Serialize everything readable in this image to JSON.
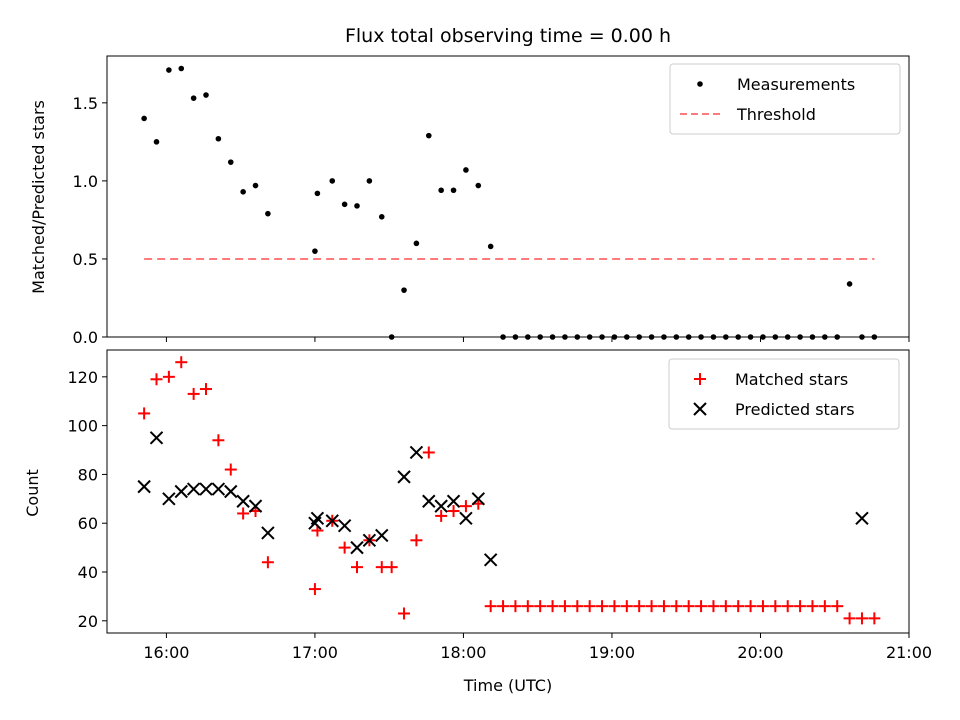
{
  "chart_data": [
    {
      "type": "scatter",
      "title": "Flux total observing time = 0.00 h",
      "xlabel": "",
      "ylabel": "Matched/Predicted stars",
      "ylim": [
        0,
        1.8
      ],
      "xlim": [
        "15:36",
        "21:00"
      ],
      "yticks": [
        "0.0",
        "0.5",
        "1.0",
        "1.5"
      ],
      "grid": false,
      "legend_position": "top-right",
      "colors": {
        "measurements": "#000000",
        "threshold": "#ff7b7b"
      },
      "series": [
        {
          "name": "Measurements",
          "x": [
            "15:51",
            "15:56",
            "16:01",
            "16:06",
            "16:11",
            "16:16",
            "16:21",
            "16:26",
            "16:31",
            "16:36",
            "16:41",
            "17:00",
            "17:01",
            "17:07",
            "17:12",
            "17:17",
            "17:22",
            "17:27",
            "17:31",
            "17:36",
            "17:41",
            "17:46",
            "17:51",
            "17:56",
            "18:01",
            "18:06",
            "18:11",
            "18:16",
            "18:21",
            "18:26",
            "18:31",
            "18:36",
            "18:41",
            "18:46",
            "18:51",
            "18:56",
            "19:01",
            "19:06",
            "19:11",
            "19:16",
            "19:21",
            "19:26",
            "19:31",
            "19:36",
            "19:41",
            "19:46",
            "19:51",
            "19:56",
            "20:01",
            "20:06",
            "20:11",
            "20:16",
            "20:21",
            "20:26",
            "20:31",
            "20:36",
            "20:41",
            "20:46"
          ],
          "y": [
            1.4,
            1.25,
            1.71,
            1.72,
            1.53,
            1.55,
            1.27,
            1.12,
            0.93,
            0.97,
            0.79,
            0.55,
            0.92,
            1.0,
            0.85,
            0.84,
            1.0,
            0.77,
            0.0,
            0.3,
            0.6,
            1.29,
            0.94,
            0.94,
            1.07,
            0.97,
            0.58,
            0.0,
            0.0,
            0.0,
            0.0,
            0.0,
            0.0,
            0.0,
            0.0,
            0.0,
            0.0,
            0.0,
            0.0,
            0.0,
            0.0,
            0.0,
            0.0,
            0.0,
            0.0,
            0.0,
            0.0,
            0.0,
            0.0,
            0.0,
            0.0,
            0.0,
            0.0,
            0.0,
            0.0,
            0.34,
            0.0,
            0.0
          ]
        },
        {
          "name": "Threshold",
          "x": [
            "15:51",
            "20:46"
          ],
          "y": [
            0.5,
            0.5
          ]
        }
      ]
    },
    {
      "type": "scatter",
      "title": "",
      "xlabel": "Time (UTC)",
      "ylabel": "Count",
      "ylim": [
        15,
        131
      ],
      "xlim": [
        "15:36",
        "21:00"
      ],
      "xticks": [
        "16:00",
        "17:00",
        "18:00",
        "19:00",
        "20:00",
        "21:00"
      ],
      "yticks": [
        "20",
        "40",
        "60",
        "80",
        "100",
        "120"
      ],
      "grid": false,
      "legend_position": "top-right",
      "colors": {
        "matched": "#ff0000",
        "predicted": "#000000"
      },
      "series": [
        {
          "name": "Matched stars",
          "x": [
            "15:51",
            "15:56",
            "16:01",
            "16:06",
            "16:11",
            "16:16",
            "16:21",
            "16:26",
            "16:31",
            "16:36",
            "16:41",
            "17:00",
            "17:01",
            "17:07",
            "17:12",
            "17:17",
            "17:22",
            "17:27",
            "17:31",
            "17:36",
            "17:41",
            "17:46",
            "17:51",
            "17:56",
            "18:01",
            "18:06",
            "18:11",
            "18:16",
            "18:21",
            "18:26",
            "18:31",
            "18:36",
            "18:41",
            "18:46",
            "18:51",
            "18:56",
            "19:01",
            "19:06",
            "19:11",
            "19:16",
            "19:21",
            "19:26",
            "19:31",
            "19:36",
            "19:41",
            "19:46",
            "19:51",
            "19:56",
            "20:01",
            "20:06",
            "20:11",
            "20:16",
            "20:21",
            "20:26",
            "20:31",
            "20:36",
            "20:41",
            "20:46"
          ],
          "y": [
            105,
            119,
            120,
            126,
            113,
            115,
            94,
            82,
            64,
            65,
            44,
            33,
            57,
            61,
            50,
            42,
            53,
            42,
            42,
            23,
            53,
            89,
            63,
            65,
            67,
            68,
            26,
            26,
            26,
            26,
            26,
            26,
            26,
            26,
            26,
            26,
            26,
            26,
            26,
            26,
            26,
            26,
            26,
            26,
            26,
            26,
            26,
            26,
            26,
            26,
            26,
            26,
            26,
            26,
            26,
            21,
            21,
            21
          ]
        },
        {
          "name": "Predicted stars",
          "x": [
            "15:51",
            "15:56",
            "16:01",
            "16:06",
            "16:11",
            "16:16",
            "16:21",
            "16:26",
            "16:31",
            "16:36",
            "16:41",
            "17:00",
            "17:01",
            "17:07",
            "17:12",
            "17:17",
            "17:22",
            "17:27",
            "17:36",
            "17:41",
            "17:46",
            "17:51",
            "17:56",
            "18:01",
            "18:06",
            "18:11",
            "20:41"
          ],
          "y": [
            75,
            95,
            70,
            73,
            74,
            74,
            74,
            73,
            69,
            67,
            56,
            60,
            62,
            61,
            59,
            50,
            53,
            55,
            79,
            89,
            69,
            67,
            69,
            62,
            70,
            45,
            62
          ]
        }
      ]
    }
  ]
}
